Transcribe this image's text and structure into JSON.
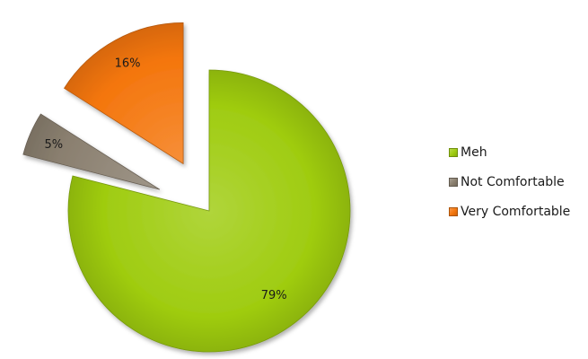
{
  "chart_data": {
    "type": "pie",
    "exploded": true,
    "legend_position": "right",
    "categories": [
      "Meh",
      "Not Comfortable",
      "Very Comfortable"
    ],
    "values": [
      79,
      5,
      16
    ],
    "labels": [
      "79%",
      "5%",
      "16%"
    ],
    "colors": [
      "#9fcc10",
      "#8a7f6f",
      "#f4760d"
    ]
  }
}
